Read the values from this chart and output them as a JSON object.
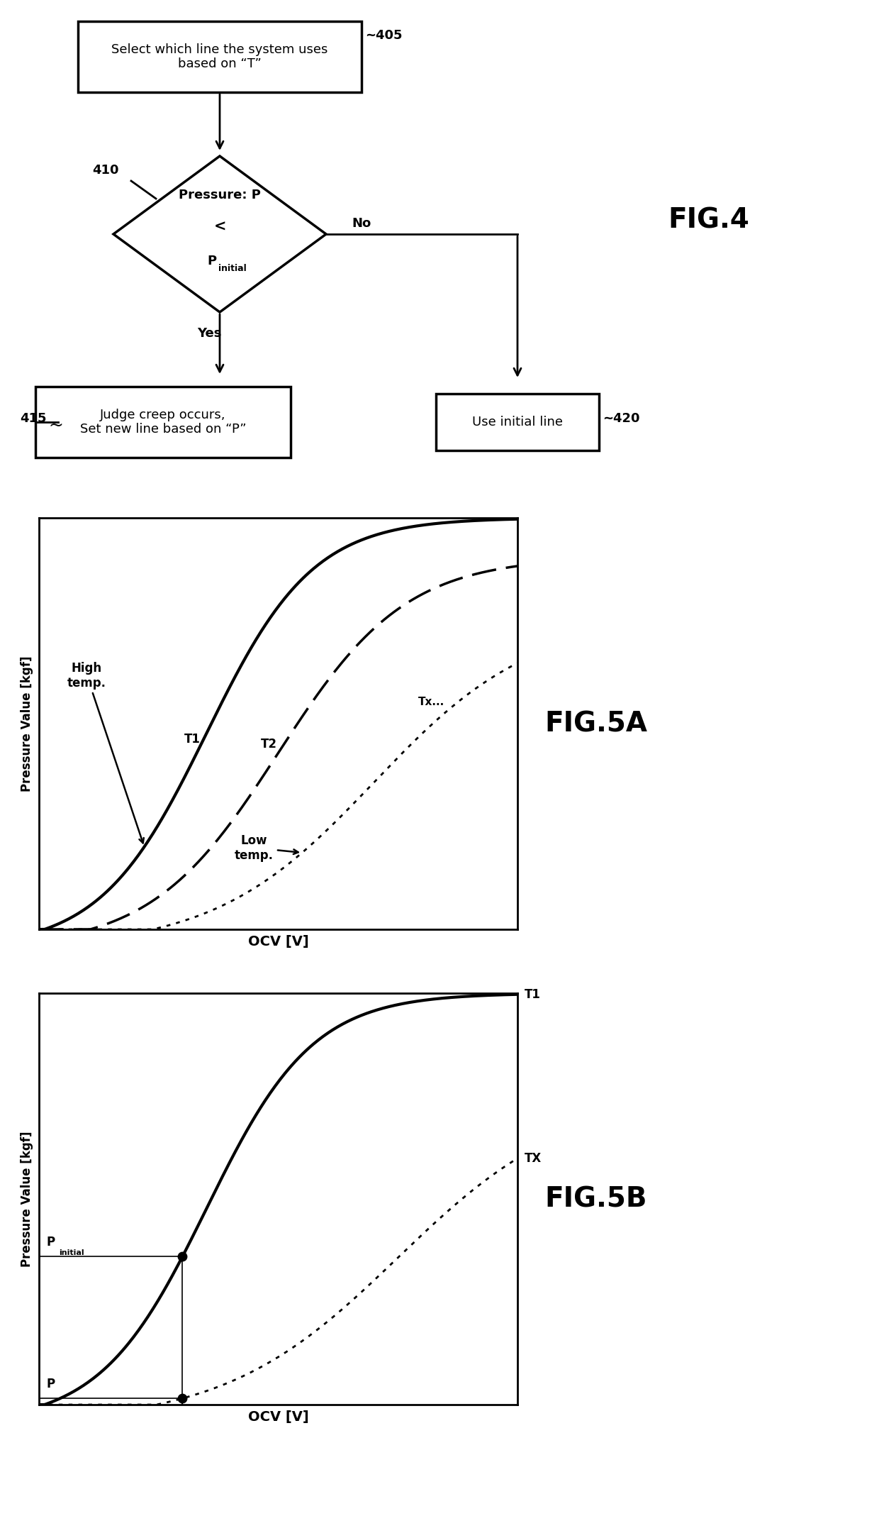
{
  "fig_width": 12.4,
  "fig_height": 21.68,
  "bg_color": "#ffffff",
  "flowchart": {
    "box405_text": "Select which line the system uses\nbased on “T”",
    "box405_label": "~405",
    "diamond410_label": "410",
    "box415_text": "Judge creep occurs,\nSet new line based on “P”",
    "box415_label": "415",
    "box420_text": "Use initial line",
    "box420_label": "~420",
    "yes_label": "Yes",
    "no_label": "No",
    "fig4_label": "FIG.4"
  },
  "fig5a": {
    "xlabel": "OCV [V]",
    "ylabel": "Pressure Value [kgf]",
    "label_T1": "T1",
    "label_T2": "T2",
    "label_Tx": "Tx...",
    "label_high": "High\ntemp.",
    "label_low": "Low\ntemp.",
    "fig_label": "FIG.5A"
  },
  "fig5b": {
    "xlabel": "OCV [V]",
    "ylabel": "Pressure Value [kgf]",
    "label_T1": "T1",
    "label_TX": "TX",
    "fig_label": "FIG.5B"
  }
}
